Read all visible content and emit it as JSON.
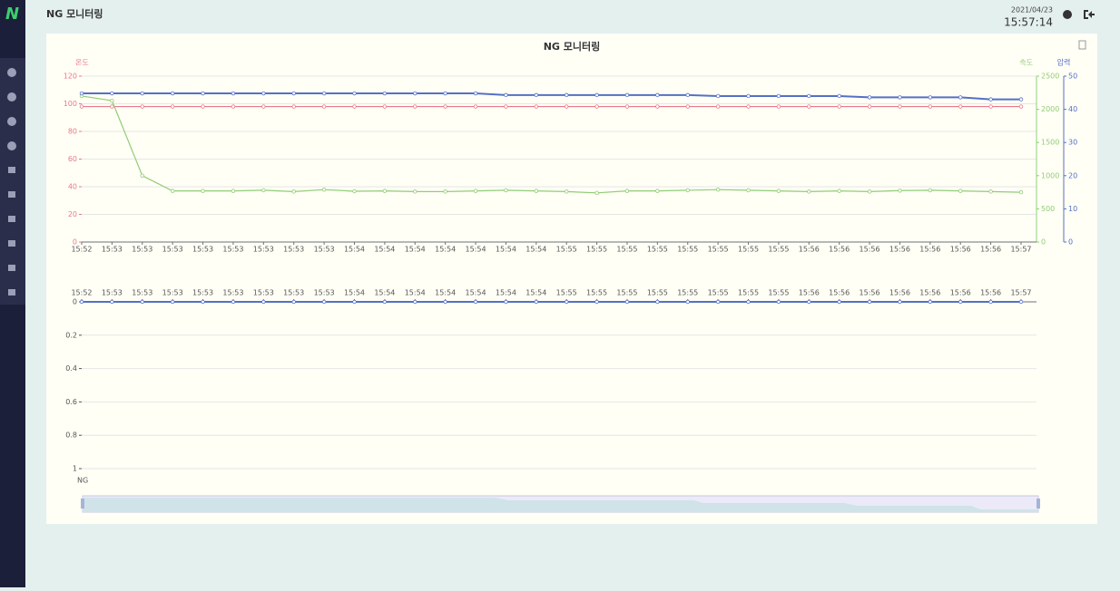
{
  "header": {
    "title": "NG 모니터링",
    "date": "2021/04/23",
    "time": "15:57:14"
  },
  "chart_data": [
    {
      "type": "line",
      "title": "NG 모니터링",
      "categories": [
        "15:52",
        "15:53",
        "15:53",
        "15:53",
        "15:53",
        "15:53",
        "15:53",
        "15:53",
        "15:53",
        "15:54",
        "15:54",
        "15:54",
        "15:54",
        "15:54",
        "15:54",
        "15:54",
        "15:55",
        "15:55",
        "15:55",
        "15:55",
        "15:55",
        "15:55",
        "15:55",
        "15:55",
        "15:56",
        "15:56",
        "15:56",
        "15:56",
        "15:56",
        "15:56",
        "15:56",
        "15:57"
      ],
      "ylim": [
        0,
        120
      ],
      "yticks": [
        0,
        20,
        40,
        60,
        80,
        100,
        120
      ],
      "y2lim": [
        0,
        2500
      ],
      "y2ticks": [
        0,
        500,
        1000,
        1500,
        2000,
        2500
      ],
      "y3lim": [
        0,
        50
      ],
      "y3ticks": [
        0,
        10,
        20,
        30,
        40,
        50
      ],
      "grid": true,
      "series": [
        {
          "name": "온도",
          "color": "#e8788a",
          "axis": "y",
          "values": [
            98,
            98,
            98,
            98,
            98,
            98,
            98,
            98,
            98,
            98,
            98,
            98,
            98,
            98,
            98,
            98,
            98,
            98,
            98,
            98,
            98,
            98,
            98,
            98,
            98,
            98,
            98,
            98,
            98,
            98,
            98,
            98
          ]
        },
        {
          "name": "속도",
          "color": "#91cc75",
          "axis": "y2",
          "values": [
            2200,
            2130,
            1000,
            770,
            770,
            770,
            780,
            760,
            790,
            765,
            770,
            760,
            760,
            770,
            780,
            770,
            760,
            740,
            770,
            770,
            780,
            790,
            780,
            770,
            760,
            770,
            760,
            775,
            780,
            770,
            760,
            750
          ]
        },
        {
          "name": "압력",
          "color": "#5470c6",
          "axis": "y3",
          "values": [
            44.8,
            44.8,
            44.8,
            44.8,
            44.8,
            44.8,
            44.8,
            44.8,
            44.8,
            44.8,
            44.8,
            44.8,
            44.8,
            44.8,
            44.3,
            44.3,
            44.3,
            44.3,
            44.3,
            44.3,
            44.3,
            44.0,
            44.0,
            44.0,
            44.0,
            44.0,
            43.6,
            43.6,
            43.6,
            43.6,
            43.0,
            43.0
          ]
        }
      ]
    },
    {
      "type": "line",
      "categories": [
        "15:52",
        "15:53",
        "15:53",
        "15:53",
        "15:53",
        "15:53",
        "15:53",
        "15:53",
        "15:53",
        "15:54",
        "15:54",
        "15:54",
        "15:54",
        "15:54",
        "15:54",
        "15:54",
        "15:55",
        "15:55",
        "15:55",
        "15:55",
        "15:55",
        "15:55",
        "15:55",
        "15:55",
        "15:56",
        "15:56",
        "15:56",
        "15:56",
        "15:56",
        "15:56",
        "15:56",
        "15:57"
      ],
      "ylim": [
        0,
        1
      ],
      "yticks": [
        0,
        0.2,
        0.4,
        0.6,
        0.8,
        1
      ],
      "y_inverse": true,
      "grid": true,
      "series": [
        {
          "name": "NG",
          "color": "#5470c6",
          "values": [
            0,
            0,
            0,
            0,
            0,
            0,
            0,
            0,
            0,
            0,
            0,
            0,
            0,
            0,
            0,
            0,
            0,
            0,
            0,
            0,
            0,
            0,
            0,
            0,
            0,
            0,
            0,
            0,
            0,
            0,
            0,
            0
          ]
        }
      ]
    }
  ]
}
